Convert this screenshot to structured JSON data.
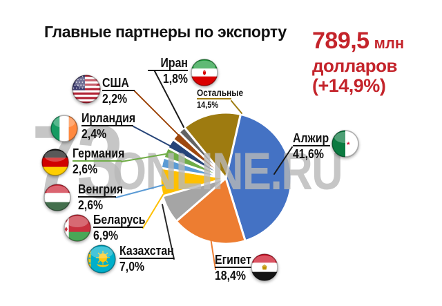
{
  "title": "Главные партнеры по экспорту",
  "stat": {
    "value": "789,5",
    "unit": "млн",
    "line2": "долларов",
    "line3": "(+14,9%)",
    "color": "#C4242B"
  },
  "watermark": {
    "big": "73",
    "small": "ONLINE.RU"
  },
  "chart_data": {
    "type": "pie",
    "title": "Главные партнеры по экспорту",
    "total_label": "789,5 млн долларов (+14,9%)",
    "start_angle_deg": 13,
    "direction": "clockwise",
    "slices": [
      {
        "id": "algeria",
        "label": "Алжир",
        "value": 41.6,
        "display": "41,6%",
        "color": "#4472C4"
      },
      {
        "id": "egypt",
        "label": "Египет",
        "value": 18.4,
        "display": "18,4%",
        "color": "#ED7D31"
      },
      {
        "id": "kazakhstan",
        "label": "Казахстан",
        "value": 7.0,
        "display": "7,0%",
        "color": "#A5A5A5"
      },
      {
        "id": "belarus",
        "label": "Беларусь",
        "value": 6.9,
        "display": "6,9%",
        "color": "#FFC000"
      },
      {
        "id": "hungary",
        "label": "Венгрия",
        "value": 2.6,
        "display": "2,6%",
        "color": "#5B9BD5"
      },
      {
        "id": "germany",
        "label": "Германия",
        "value": 2.6,
        "display": "2,6%",
        "color": "#70AD47"
      },
      {
        "id": "ireland",
        "label": "Ирландия",
        "value": 2.4,
        "display": "2,4%",
        "color": "#264478"
      },
      {
        "id": "usa",
        "label": "США",
        "value": 2.2,
        "display": "2,2%",
        "color": "#9E480E"
      },
      {
        "id": "iran",
        "label": "Иран",
        "value": 1.8,
        "display": "1,8%",
        "color": "#636363"
      },
      {
        "id": "others",
        "label": "Остальные",
        "value": 14.5,
        "display": "14,5%",
        "color": "#9E7B10"
      }
    ]
  }
}
